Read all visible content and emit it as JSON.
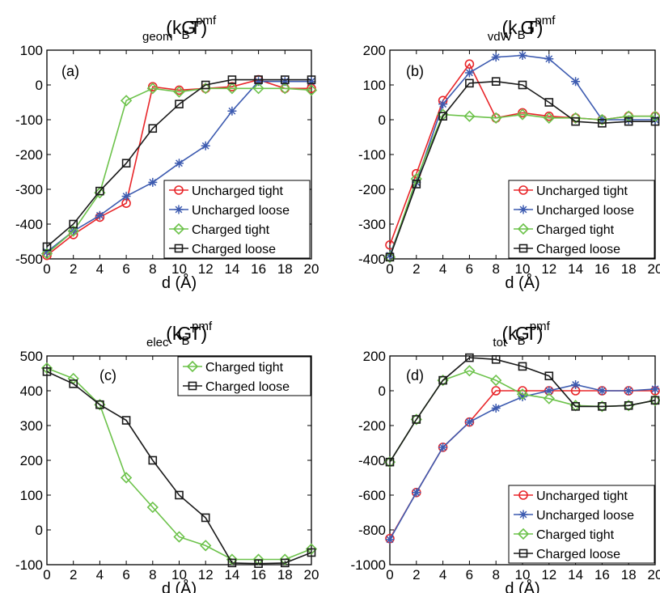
{
  "colors": {
    "uncharged_tight": "#e8262a",
    "uncharged_loose": "#3d5bb0",
    "charged_tight": "#6cc24a",
    "charged_loose": "#1a1a1a"
  },
  "chart_data": [
    {
      "id": "a",
      "type": "line",
      "panel_label": "(a)",
      "title": {
        "main": "G",
        "sup": "pmf",
        "sub": "geom",
        "tail": " (k",
        "tail_sub": "B",
        "tail_end": "T)"
      },
      "xlabel": "d (Å)",
      "ylabel": "",
      "xlim": [
        0,
        20
      ],
      "ylim": [
        -500,
        100
      ],
      "xticks": [
        0,
        2,
        4,
        6,
        8,
        10,
        12,
        14,
        16,
        18,
        20
      ],
      "yticks": [
        -500,
        -400,
        -300,
        -200,
        -100,
        0,
        100
      ],
      "legend": "lower-right",
      "x": [
        0,
        2,
        4,
        6,
        8,
        10,
        12,
        14,
        16,
        18,
        20
      ],
      "series": [
        {
          "name": "Uncharged tight",
          "key": "uncharged_tight",
          "marker": "circle",
          "values": [
            -490,
            -430,
            -380,
            -340,
            -5,
            -15,
            -10,
            -5,
            15,
            -10,
            -10
          ]
        },
        {
          "name": "Uncharged loose",
          "key": "uncharged_loose",
          "marker": "star",
          "values": [
            -480,
            -420,
            -375,
            -320,
            -280,
            -225,
            -175,
            -75,
            10,
            10,
            10
          ]
        },
        {
          "name": "Charged tight",
          "key": "charged_tight",
          "marker": "diamond",
          "values": [
            -485,
            -420,
            -310,
            -45,
            -10,
            -20,
            -10,
            -10,
            -10,
            -10,
            -15
          ]
        },
        {
          "name": "Charged loose",
          "key": "charged_loose",
          "marker": "square",
          "values": [
            -465,
            -400,
            -305,
            -225,
            -125,
            -55,
            0,
            15,
            15,
            15,
            15
          ]
        }
      ]
    },
    {
      "id": "b",
      "type": "line",
      "panel_label": "(b)",
      "title": {
        "main": "G",
        "sup": "pmf",
        "sub": "vdW",
        "tail": " (k",
        "tail_sub": "B",
        "tail_end": "T)"
      },
      "xlabel": "d (Å)",
      "ylabel": "",
      "xlim": [
        0,
        20
      ],
      "ylim": [
        -400,
        200
      ],
      "xticks": [
        0,
        2,
        4,
        6,
        8,
        10,
        12,
        14,
        16,
        18,
        20
      ],
      "yticks": [
        -400,
        -300,
        -200,
        -100,
        0,
        100,
        200
      ],
      "legend": "lower-right",
      "x": [
        0,
        2,
        4,
        6,
        8,
        10,
        12,
        14,
        16,
        18,
        20
      ],
      "series": [
        {
          "name": "Uncharged tight",
          "key": "uncharged_tight",
          "marker": "circle",
          "values": [
            -360,
            -155,
            55,
            160,
            5,
            20,
            10,
            5,
            0,
            10,
            10
          ]
        },
        {
          "name": "Uncharged loose",
          "key": "uncharged_loose",
          "marker": "star",
          "values": [
            -390,
            -180,
            45,
            135,
            180,
            185,
            175,
            110,
            0,
            0,
            0
          ]
        },
        {
          "name": "Charged tight",
          "key": "charged_tight",
          "marker": "diamond",
          "values": [
            -395,
            -170,
            15,
            10,
            5,
            15,
            5,
            5,
            0,
            10,
            10
          ]
        },
        {
          "name": "Charged loose",
          "key": "charged_loose",
          "marker": "square",
          "values": [
            -395,
            -185,
            10,
            105,
            110,
            100,
            50,
            -5,
            -10,
            -5,
            -5
          ]
        }
      ]
    },
    {
      "id": "c",
      "type": "line",
      "panel_label": "(c)",
      "title": {
        "main": "G",
        "sup": "pmf",
        "sub": "elec",
        "tail": " (k",
        "tail_sub": "B",
        "tail_end": "T)"
      },
      "xlabel": "d (Å)",
      "ylabel": "",
      "xlim": [
        0,
        20
      ],
      "ylim": [
        -100,
        500
      ],
      "xticks": [
        0,
        2,
        4,
        6,
        8,
        10,
        12,
        14,
        16,
        18,
        20
      ],
      "yticks": [
        -100,
        0,
        100,
        200,
        300,
        400,
        500
      ],
      "legend": "top-right",
      "x": [
        0,
        2,
        4,
        6,
        8,
        10,
        12,
        14,
        16,
        18,
        20
      ],
      "series": [
        {
          "name": "Charged tight",
          "key": "charged_tight",
          "marker": "diamond",
          "values": [
            465,
            435,
            360,
            150,
            65,
            -20,
            -45,
            -85,
            -85,
            -85,
            -55
          ]
        },
        {
          "name": "Charged loose",
          "key": "charged_loose",
          "marker": "square",
          "values": [
            455,
            420,
            360,
            315,
            200,
            100,
            35,
            -95,
            -97,
            -95,
            -65
          ]
        }
      ]
    },
    {
      "id": "d",
      "type": "line",
      "panel_label": "(d)",
      "title": {
        "main": "G",
        "sup": "pmf",
        "sub": "tot",
        "tail": " (k",
        "tail_sub": "B",
        "tail_end": "T)"
      },
      "xlabel": "d (Å)",
      "ylabel": "",
      "xlim": [
        0,
        20
      ],
      "ylim": [
        -1000,
        200
      ],
      "xticks": [
        0,
        2,
        4,
        6,
        8,
        10,
        12,
        14,
        16,
        18,
        20
      ],
      "yticks": [
        -1000,
        -800,
        -600,
        -400,
        -200,
        0,
        200
      ],
      "legend": "lower-right",
      "x": [
        0,
        2,
        4,
        6,
        8,
        10,
        12,
        14,
        16,
        18,
        20
      ],
      "series": [
        {
          "name": "Uncharged tight",
          "key": "uncharged_tight",
          "marker": "circle",
          "values": [
            -850,
            -585,
            -325,
            -180,
            0,
            0,
            0,
            0,
            0,
            0,
            0
          ]
        },
        {
          "name": "Uncharged loose",
          "key": "uncharged_loose",
          "marker": "star",
          "values": [
            -855,
            -585,
            -325,
            -180,
            -100,
            -35,
            0,
            35,
            0,
            0,
            10
          ]
        },
        {
          "name": "Charged tight",
          "key": "charged_tight",
          "marker": "diamond",
          "values": [
            -410,
            -165,
            60,
            115,
            60,
            -20,
            -45,
            -85,
            -90,
            -85,
            -55
          ]
        },
        {
          "name": "Charged loose",
          "key": "charged_loose",
          "marker": "square",
          "values": [
            -410,
            -165,
            60,
            190,
            180,
            140,
            85,
            -90,
            -90,
            -85,
            -55
          ]
        }
      ]
    }
  ]
}
